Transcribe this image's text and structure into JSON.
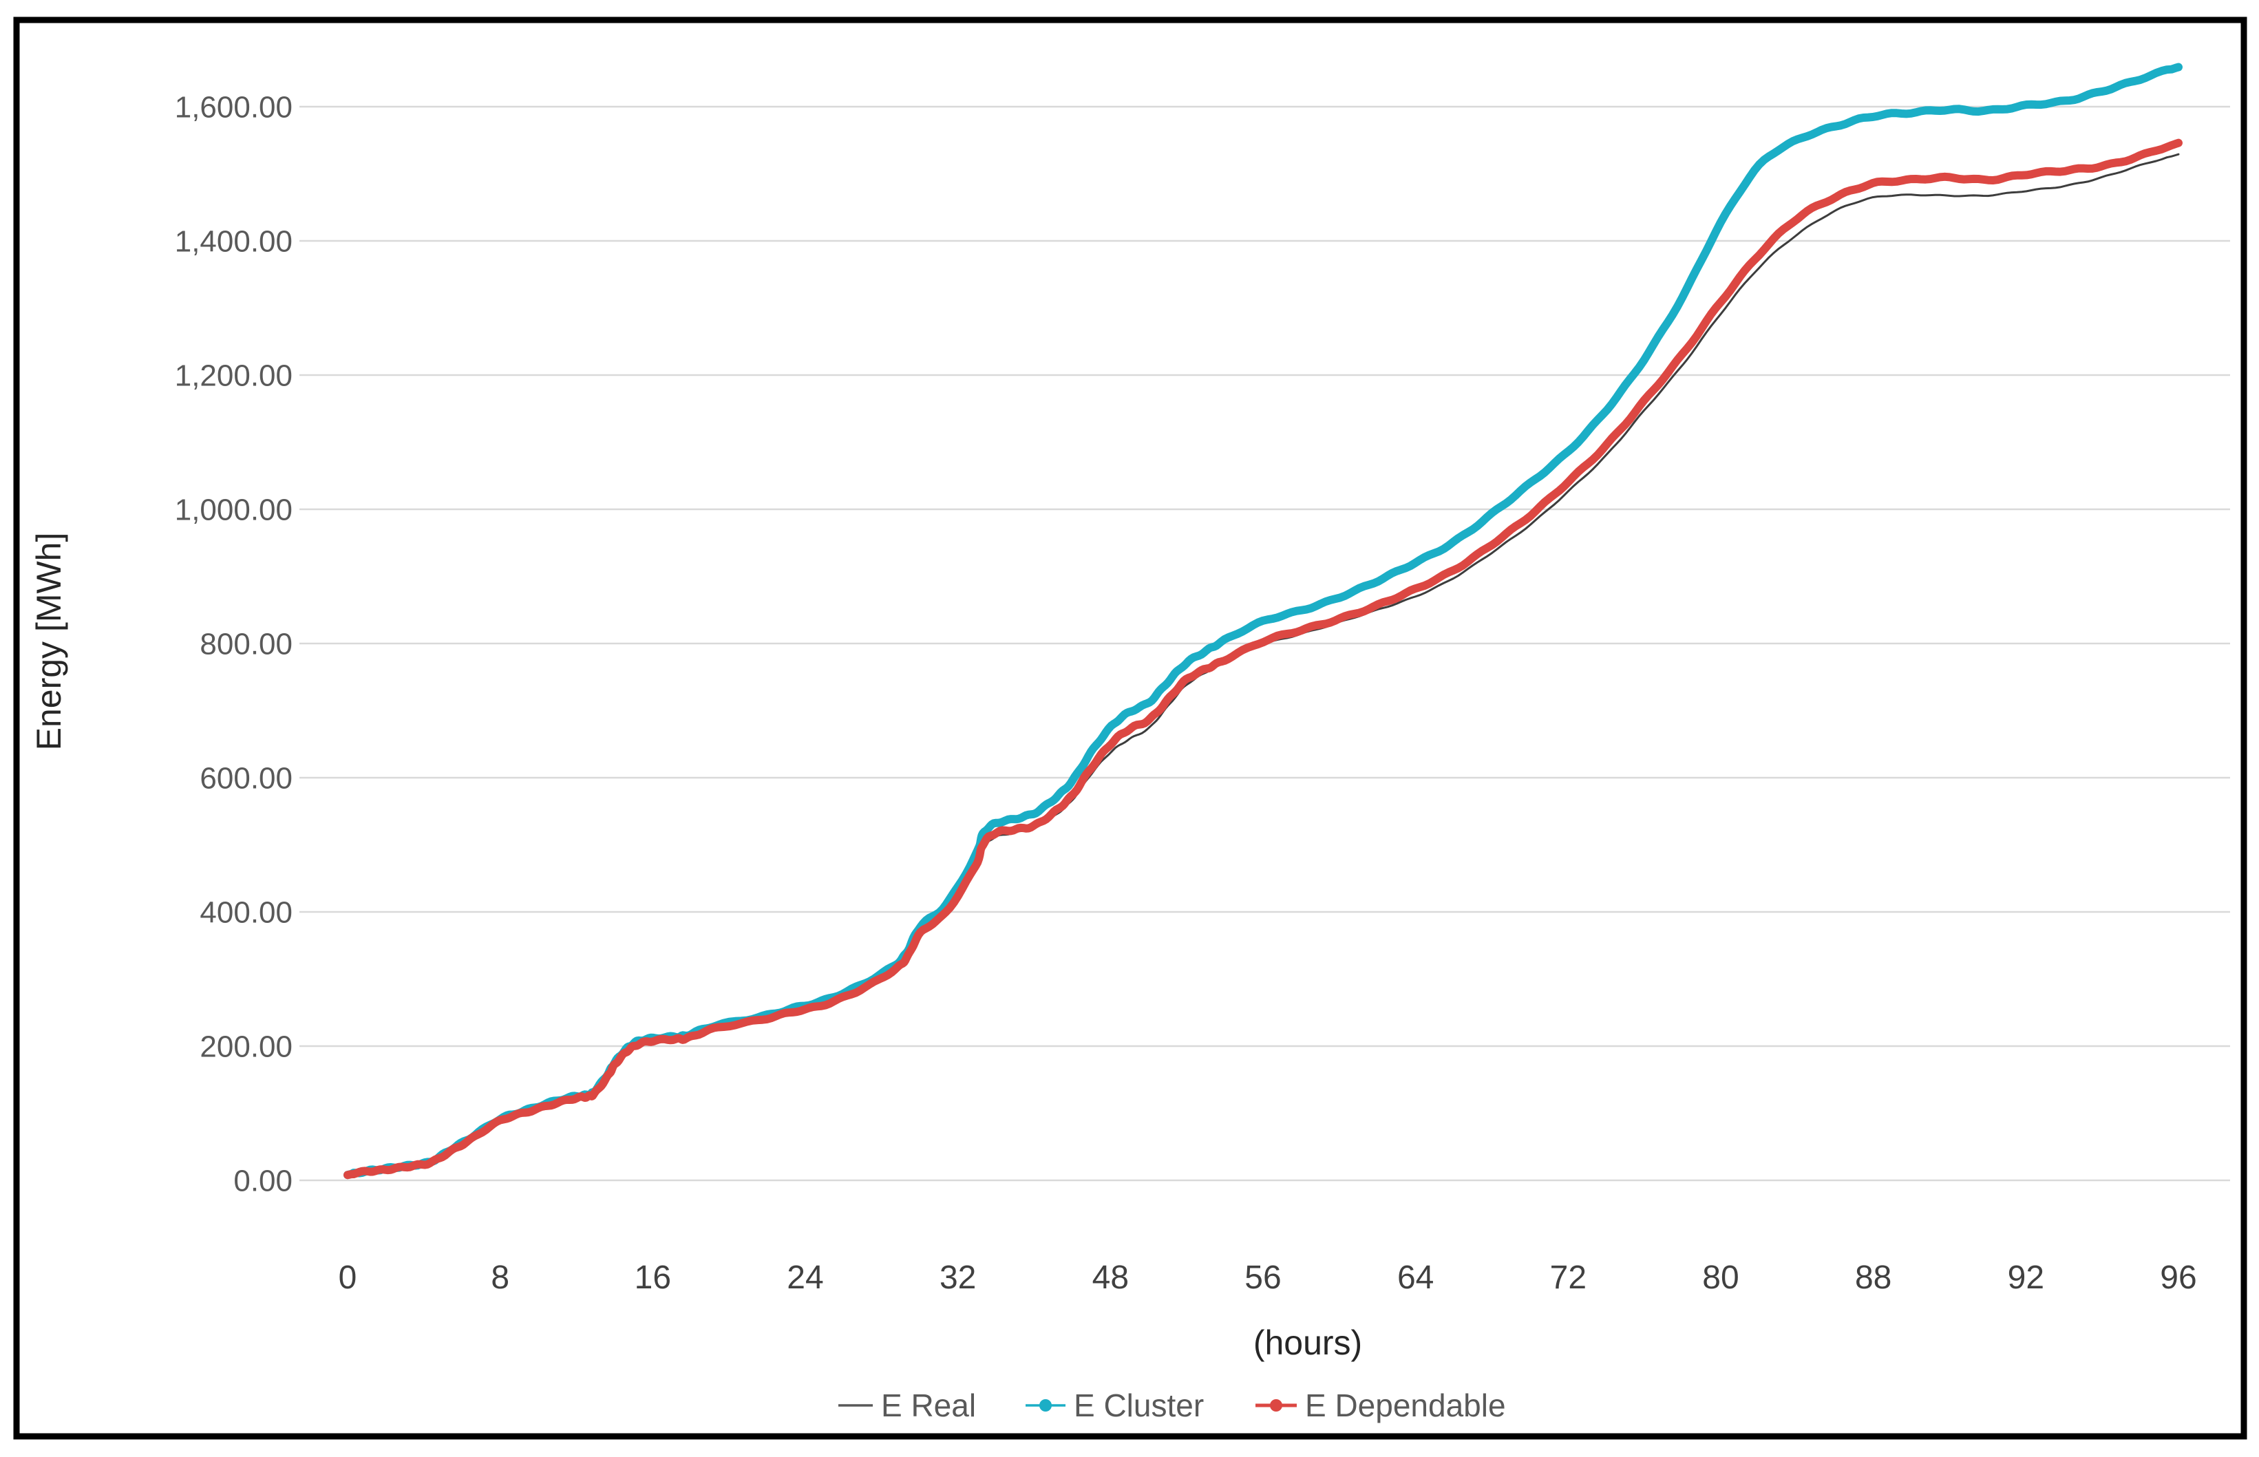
{
  "chart_data": {
    "type": "line",
    "title": "",
    "xlabel": "(hours)",
    "ylabel": "Energy [MWh]",
    "grid": true,
    "legend_position": "bottom",
    "x_axis": {
      "tick_labels": [
        "0",
        "8",
        "16",
        "24",
        "32",
        "48",
        "56",
        "64",
        "72",
        "80",
        "88",
        "92",
        "96"
      ]
    },
    "y_axis": {
      "min": 0,
      "max": 1700,
      "step": 200,
      "tick_labels": [
        "0.00",
        "200.00",
        "400.00",
        "600.00",
        "800.00",
        "1,000.00",
        "1,200.00",
        "1,400.00",
        "1,600.00"
      ]
    },
    "series": [
      {
        "name": "E Real",
        "color": "#3d3d3d",
        "line_width": 3,
        "marker": "none",
        "points_u_mwh": [
          [
            0,
            8
          ],
          [
            0.011,
            14
          ],
          [
            0.022,
            17
          ],
          [
            0.034,
            20
          ],
          [
            0.045,
            26
          ],
          [
            0.056,
            44
          ],
          [
            0.068,
            62
          ],
          [
            0.0833,
            88
          ],
          [
            0.097,
            102
          ],
          [
            0.111,
            113
          ],
          [
            0.124,
            121
          ],
          [
            0.131,
            125
          ],
          [
            0.135,
            131
          ],
          [
            0.142,
            154
          ],
          [
            0.146,
            172
          ],
          [
            0.152,
            192
          ],
          [
            0.158,
            202
          ],
          [
            0.167,
            207
          ],
          [
            0.179,
            211
          ],
          [
            0.186,
            213
          ],
          [
            0.2,
            225
          ],
          [
            0.224,
            238
          ],
          [
            0.243,
            252
          ],
          [
            0.261,
            262
          ],
          [
            0.28,
            283
          ],
          [
            0.299,
            315
          ],
          [
            0.306,
            335
          ],
          [
            0.313,
            368
          ],
          [
            0.327,
            398
          ],
          [
            0.343,
            466
          ],
          [
            0.347,
            495
          ],
          [
            0.354,
            512
          ],
          [
            0.365,
            519
          ],
          [
            0.376,
            526
          ],
          [
            0.387,
            545
          ],
          [
            0.396,
            568
          ],
          [
            0.406,
            605
          ],
          [
            0.417,
            638
          ],
          [
            0.427,
            658
          ],
          [
            0.438,
            675
          ],
          [
            0.448,
            706
          ],
          [
            0.458,
            738
          ],
          [
            0.469,
            758
          ],
          [
            0.479,
            772
          ],
          [
            0.5,
            798
          ],
          [
            0.521,
            815
          ],
          [
            0.542,
            832
          ],
          [
            0.563,
            850
          ],
          [
            0.583,
            870
          ],
          [
            0.604,
            898
          ],
          [
            0.625,
            935
          ],
          [
            0.646,
            977
          ],
          [
            0.667,
            1028
          ],
          [
            0.688,
            1082
          ],
          [
            0.708,
            1146
          ],
          [
            0.729,
            1215
          ],
          [
            0.75,
            1292
          ],
          [
            0.771,
            1360
          ],
          [
            0.792,
            1410
          ],
          [
            0.813,
            1446
          ],
          [
            0.833,
            1464
          ],
          [
            0.854,
            1468
          ],
          [
            0.875,
            1468
          ],
          [
            0.896,
            1468
          ],
          [
            0.917,
            1474
          ],
          [
            0.938,
            1482
          ],
          [
            0.958,
            1495
          ],
          [
            0.979,
            1512
          ],
          [
            1,
            1529
          ]
        ]
      },
      {
        "name": "E Cluster",
        "color": "#1BAEC6",
        "line_width": 12,
        "marker": "dot",
        "points_u_mwh": [
          [
            0,
            8
          ],
          [
            0.011,
            15
          ],
          [
            0.022,
            18
          ],
          [
            0.034,
            21
          ],
          [
            0.045,
            28
          ],
          [
            0.056,
            46
          ],
          [
            0.068,
            64
          ],
          [
            0.0833,
            91
          ],
          [
            0.097,
            105
          ],
          [
            0.111,
            116
          ],
          [
            0.124,
            124
          ],
          [
            0.131,
            128
          ],
          [
            0.135,
            134
          ],
          [
            0.142,
            157
          ],
          [
            0.146,
            176
          ],
          [
            0.152,
            196
          ],
          [
            0.158,
            206
          ],
          [
            0.167,
            211
          ],
          [
            0.179,
            215
          ],
          [
            0.186,
            217
          ],
          [
            0.2,
            229
          ],
          [
            0.224,
            243
          ],
          [
            0.243,
            257
          ],
          [
            0.261,
            268
          ],
          [
            0.28,
            290
          ],
          [
            0.299,
            322
          ],
          [
            0.306,
            343
          ],
          [
            0.313,
            378
          ],
          [
            0.327,
            412
          ],
          [
            0.343,
            485
          ],
          [
            0.347,
            515
          ],
          [
            0.354,
            532
          ],
          [
            0.365,
            540
          ],
          [
            0.376,
            548
          ],
          [
            0.387,
            570
          ],
          [
            0.396,
            597
          ],
          [
            0.406,
            638
          ],
          [
            0.417,
            675
          ],
          [
            0.427,
            698
          ],
          [
            0.438,
            714
          ],
          [
            0.448,
            742
          ],
          [
            0.458,
            770
          ],
          [
            0.469,
            790
          ],
          [
            0.479,
            805
          ],
          [
            0.5,
            832
          ],
          [
            0.521,
            850
          ],
          [
            0.542,
            870
          ],
          [
            0.563,
            893
          ],
          [
            0.583,
            920
          ],
          [
            0.604,
            952
          ],
          [
            0.625,
            993
          ],
          [
            0.646,
            1038
          ],
          [
            0.667,
            1088
          ],
          [
            0.688,
            1150
          ],
          [
            0.708,
            1222
          ],
          [
            0.729,
            1316
          ],
          [
            0.75,
            1428
          ],
          [
            0.771,
            1512
          ],
          [
            0.792,
            1550
          ],
          [
            0.813,
            1572
          ],
          [
            0.833,
            1586
          ],
          [
            0.854,
            1590
          ],
          [
            0.875,
            1596
          ],
          [
            0.896,
            1595
          ],
          [
            0.917,
            1601
          ],
          [
            0.938,
            1608
          ],
          [
            0.958,
            1624
          ],
          [
            0.979,
            1641
          ],
          [
            1,
            1659
          ]
        ]
      },
      {
        "name": "E Dependable",
        "color": "#DC4742",
        "line_width": 12,
        "marker": "dot",
        "points_u_mwh": [
          [
            0,
            8
          ],
          [
            0.011,
            14
          ],
          [
            0.022,
            17
          ],
          [
            0.034,
            20
          ],
          [
            0.045,
            26
          ],
          [
            0.056,
            44
          ],
          [
            0.068,
            62
          ],
          [
            0.0833,
            88
          ],
          [
            0.097,
            102
          ],
          [
            0.111,
            113
          ],
          [
            0.124,
            121
          ],
          [
            0.131,
            125
          ],
          [
            0.135,
            131
          ],
          [
            0.142,
            154
          ],
          [
            0.146,
            172
          ],
          [
            0.152,
            192
          ],
          [
            0.158,
            202
          ],
          [
            0.167,
            207
          ],
          [
            0.179,
            211
          ],
          [
            0.186,
            213
          ],
          [
            0.2,
            225
          ],
          [
            0.224,
            238
          ],
          [
            0.243,
            252
          ],
          [
            0.261,
            262
          ],
          [
            0.28,
            283
          ],
          [
            0.299,
            315
          ],
          [
            0.306,
            335
          ],
          [
            0.313,
            368
          ],
          [
            0.327,
            400
          ],
          [
            0.343,
            470
          ],
          [
            0.347,
            500
          ],
          [
            0.354,
            517
          ],
          [
            0.365,
            524
          ],
          [
            0.376,
            530
          ],
          [
            0.387,
            550
          ],
          [
            0.396,
            575
          ],
          [
            0.406,
            615
          ],
          [
            0.417,
            650
          ],
          [
            0.427,
            672
          ],
          [
            0.438,
            688
          ],
          [
            0.448,
            716
          ],
          [
            0.458,
            745
          ],
          [
            0.469,
            763
          ],
          [
            0.479,
            776
          ],
          [
            0.5,
            802
          ],
          [
            0.521,
            820
          ],
          [
            0.542,
            838
          ],
          [
            0.563,
            857
          ],
          [
            0.583,
            880
          ],
          [
            0.604,
            910
          ],
          [
            0.625,
            948
          ],
          [
            0.646,
            990
          ],
          [
            0.667,
            1042
          ],
          [
            0.688,
            1098
          ],
          [
            0.708,
            1160
          ],
          [
            0.729,
            1230
          ],
          [
            0.75,
            1310
          ],
          [
            0.771,
            1380
          ],
          [
            0.792,
            1433
          ],
          [
            0.813,
            1466
          ],
          [
            0.833,
            1486
          ],
          [
            0.854,
            1490
          ],
          [
            0.875,
            1494
          ],
          [
            0.896,
            1492
          ],
          [
            0.917,
            1499
          ],
          [
            0.938,
            1504
          ],
          [
            0.958,
            1512
          ],
          [
            0.979,
            1527
          ],
          [
            1,
            1546
          ]
        ]
      }
    ]
  },
  "colors": {
    "background": "#FFFFFF",
    "outer_border": "#000000",
    "gridline": "#D9D9D9",
    "y_tick_text": "#595959",
    "x_tick_text": "#404040",
    "axis_title_text": "#262626",
    "legend_text": "#595959",
    "legend_real_swatch": "#595959"
  }
}
